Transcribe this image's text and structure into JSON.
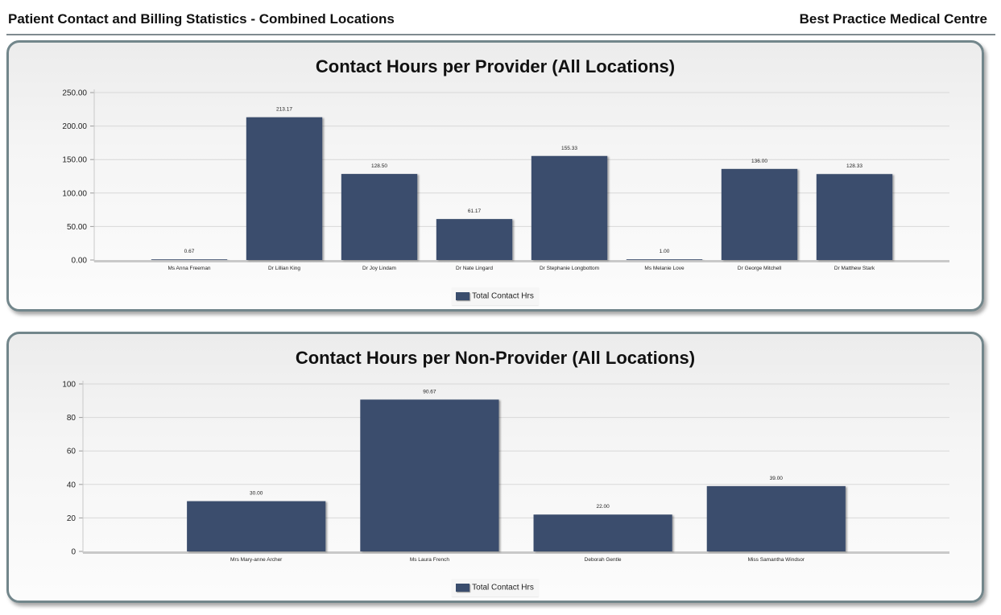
{
  "header": {
    "title": "Patient Contact and Billing Statistics - Combined Locations",
    "org": "Best Practice Medical Centre"
  },
  "colors": {
    "bar": "#3a4d6d",
    "grid": "#d8d8d8",
    "panel_border": "#72868b"
  },
  "chart_data": [
    {
      "type": "bar",
      "title": "Contact Hours per Provider (All Locations)",
      "xlabel": "",
      "ylabel": "",
      "categories": [
        "Ms Anna Freeman",
        "Dr Lillian King",
        "Dr Joy Lindam",
        "Dr Nate Lingard",
        "Dr Stephanie Longbottom",
        "Ms Melanie Love",
        "Dr George Mitchell",
        "Dr Matthew Stark"
      ],
      "series": [
        {
          "name": "Total Contact Hrs",
          "values": [
            0.67,
            213.17,
            128.5,
            61.17,
            155.33,
            1.0,
            136.0,
            128.33
          ],
          "labels": [
            "0.67",
            "213.17",
            "128.50",
            "61.17",
            "155.33",
            "1.00",
            "136.00",
            "128.33"
          ]
        }
      ],
      "ylim": [
        0,
        250
      ],
      "yticks": [
        "0.00",
        "50.00",
        "100.00",
        "150.00",
        "200.00",
        "250.00"
      ],
      "grid": true,
      "legend": "bottom-center"
    },
    {
      "type": "bar",
      "title": "Contact Hours per Non-Provider (All Locations)",
      "xlabel": "",
      "ylabel": "",
      "categories": [
        "Mrs Mary-anne Archer",
        "Ms Laura French",
        "Deborah Gentle",
        "Miss Samantha Windsor"
      ],
      "series": [
        {
          "name": "Total Contact Hrs",
          "values": [
            30.0,
            90.67,
            22.0,
            39.0
          ],
          "labels": [
            "30.00",
            "90.67",
            "22.00",
            "39.00"
          ]
        }
      ],
      "ylim": [
        0,
        100
      ],
      "yticks": [
        "0",
        "20",
        "40",
        "60",
        "80",
        "100"
      ],
      "grid": true,
      "legend": "bottom-center"
    }
  ]
}
